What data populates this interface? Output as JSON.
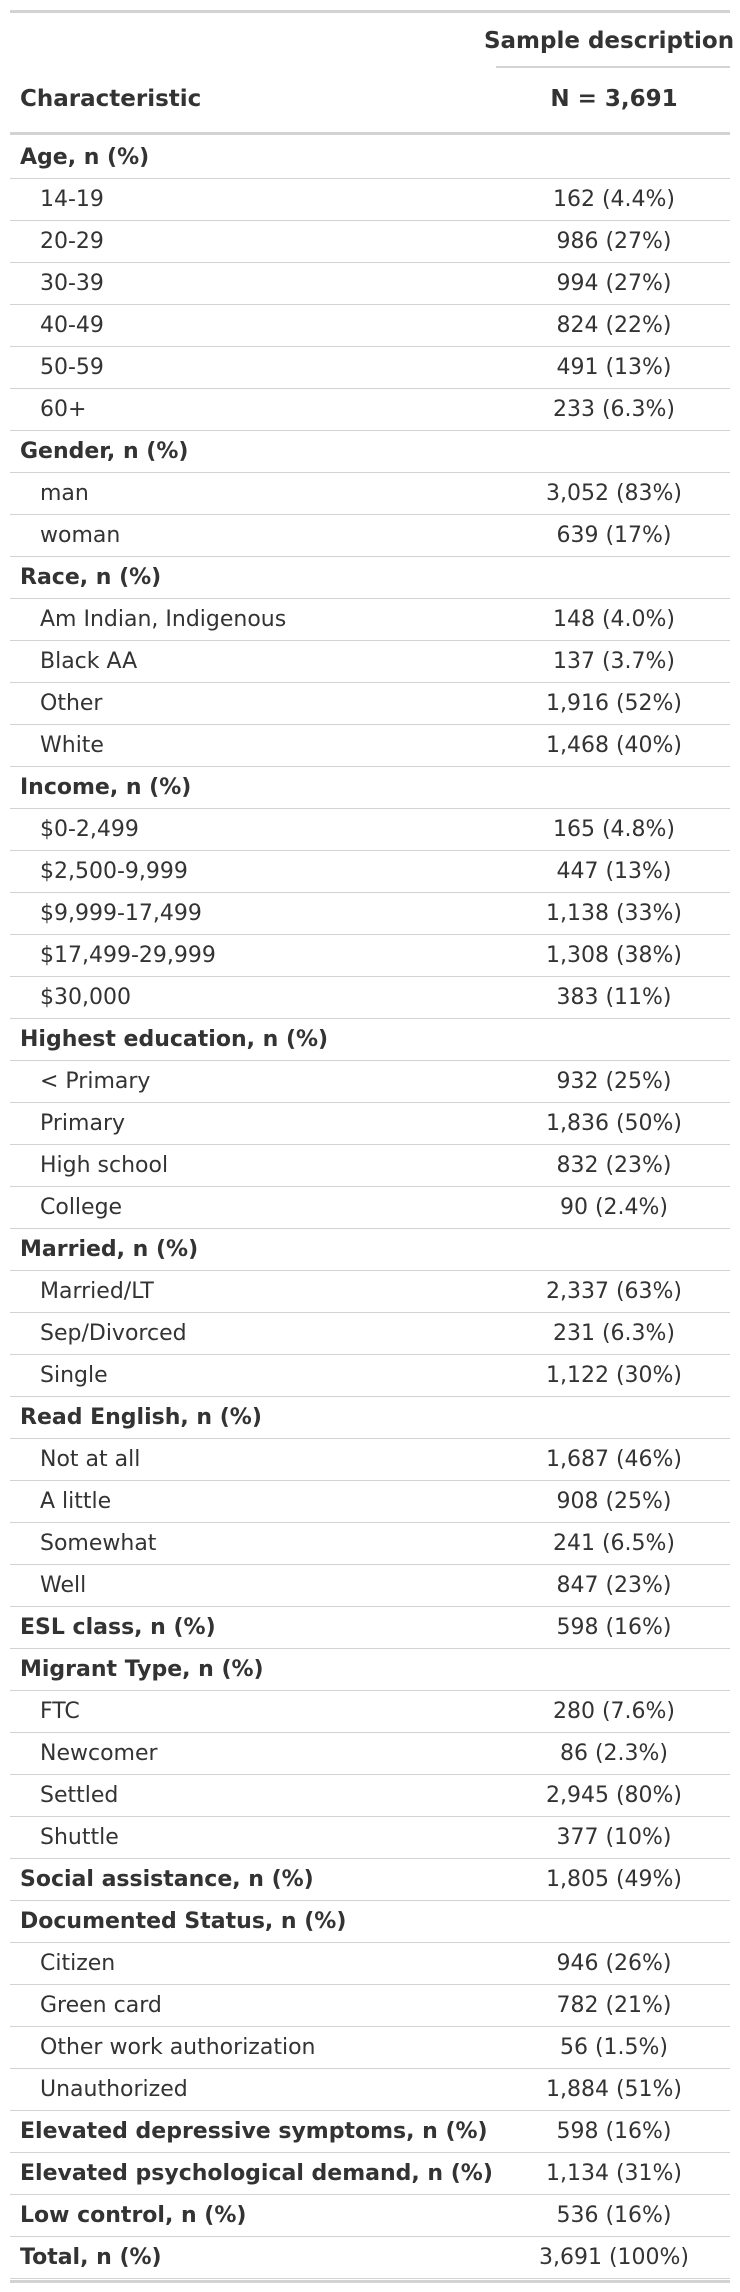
{
  "table": {
    "spanner": "Sample description",
    "header": {
      "characteristic": "Characteristic",
      "n": "N = 3,691"
    },
    "rows": [
      {
        "label": "Age, n (%)",
        "value": "",
        "bold": true
      },
      {
        "label": "14-19",
        "value": "162 (4.4%)"
      },
      {
        "label": "20-29",
        "value": "986 (27%)"
      },
      {
        "label": "30-39",
        "value": "994 (27%)"
      },
      {
        "label": "40-49",
        "value": "824 (22%)"
      },
      {
        "label": "50-59",
        "value": "491 (13%)"
      },
      {
        "label": "60+",
        "value": "233 (6.3%)"
      },
      {
        "label": "Gender, n (%)",
        "value": "",
        "bold": true
      },
      {
        "label": "man",
        "value": "3,052 (83%)"
      },
      {
        "label": "woman",
        "value": "639 (17%)"
      },
      {
        "label": "Race, n (%)",
        "value": "",
        "bold": true
      },
      {
        "label": "Am Indian, Indigenous",
        "value": "148 (4.0%)"
      },
      {
        "label": "Black AA",
        "value": "137 (3.7%)"
      },
      {
        "label": "Other",
        "value": "1,916 (52%)"
      },
      {
        "label": "White",
        "value": "1,468 (40%)"
      },
      {
        "label": "Income, n (%)",
        "value": "",
        "bold": true
      },
      {
        "label": "$0-2,499",
        "value": "165 (4.8%)"
      },
      {
        "label": "$2,500-9,999",
        "value": "447 (13%)"
      },
      {
        "label": "$9,999-17,499",
        "value": "1,138 (33%)"
      },
      {
        "label": "$17,499-29,999",
        "value": "1,308 (38%)"
      },
      {
        "label": "$30,000",
        "value": "383 (11%)"
      },
      {
        "label": "Highest education, n (%)",
        "value": "",
        "bold": true
      },
      {
        "label": "< Primary",
        "value": "932 (25%)"
      },
      {
        "label": "Primary",
        "value": "1,836 (50%)"
      },
      {
        "label": "High school",
        "value": "832 (23%)"
      },
      {
        "label": "College",
        "value": "90 (2.4%)"
      },
      {
        "label": "Married, n (%)",
        "value": "",
        "bold": true
      },
      {
        "label": "Married/LT",
        "value": "2,337 (63%)"
      },
      {
        "label": "Sep/Divorced",
        "value": "231 (6.3%)"
      },
      {
        "label": "Single",
        "value": "1,122 (30%)"
      },
      {
        "label": "Read English, n (%)",
        "value": "",
        "bold": true
      },
      {
        "label": "Not at all",
        "value": "1,687 (46%)"
      },
      {
        "label": "A little",
        "value": "908 (25%)"
      },
      {
        "label": "Somewhat",
        "value": "241 (6.5%)"
      },
      {
        "label": "Well",
        "value": "847 (23%)"
      },
      {
        "label": "ESL class, n (%)",
        "value": "598 (16%)",
        "bold": true
      },
      {
        "label": "Migrant Type, n (%)",
        "value": "",
        "bold": true
      },
      {
        "label": "FTC",
        "value": "280 (7.6%)"
      },
      {
        "label": "Newcomer",
        "value": "86 (2.3%)"
      },
      {
        "label": "Settled",
        "value": "2,945 (80%)"
      },
      {
        "label": "Shuttle",
        "value": "377 (10%)"
      },
      {
        "label": "Social assistance, n (%)",
        "value": "1,805 (49%)",
        "bold": true
      },
      {
        "label": "Documented Status, n (%)",
        "value": "",
        "bold": true
      },
      {
        "label": "Citizen",
        "value": "946 (26%)"
      },
      {
        "label": "Green card",
        "value": "782 (21%)"
      },
      {
        "label": "Other work authorization",
        "value": "56 (1.5%)"
      },
      {
        "label": "Unauthorized",
        "value": "1,884 (51%)"
      },
      {
        "label": "Elevated depressive symptoms, n (%)",
        "value": "598 (16%)",
        "bold": true
      },
      {
        "label": "Elevated psychological demand, n (%)",
        "value": "1,134 (31%)",
        "bold": true
      },
      {
        "label": "Low control, n (%)",
        "value": "536 (16%)",
        "bold": true
      },
      {
        "label": "Total, n (%)",
        "value": "3,691 (100%)",
        "bold": true
      }
    ]
  }
}
